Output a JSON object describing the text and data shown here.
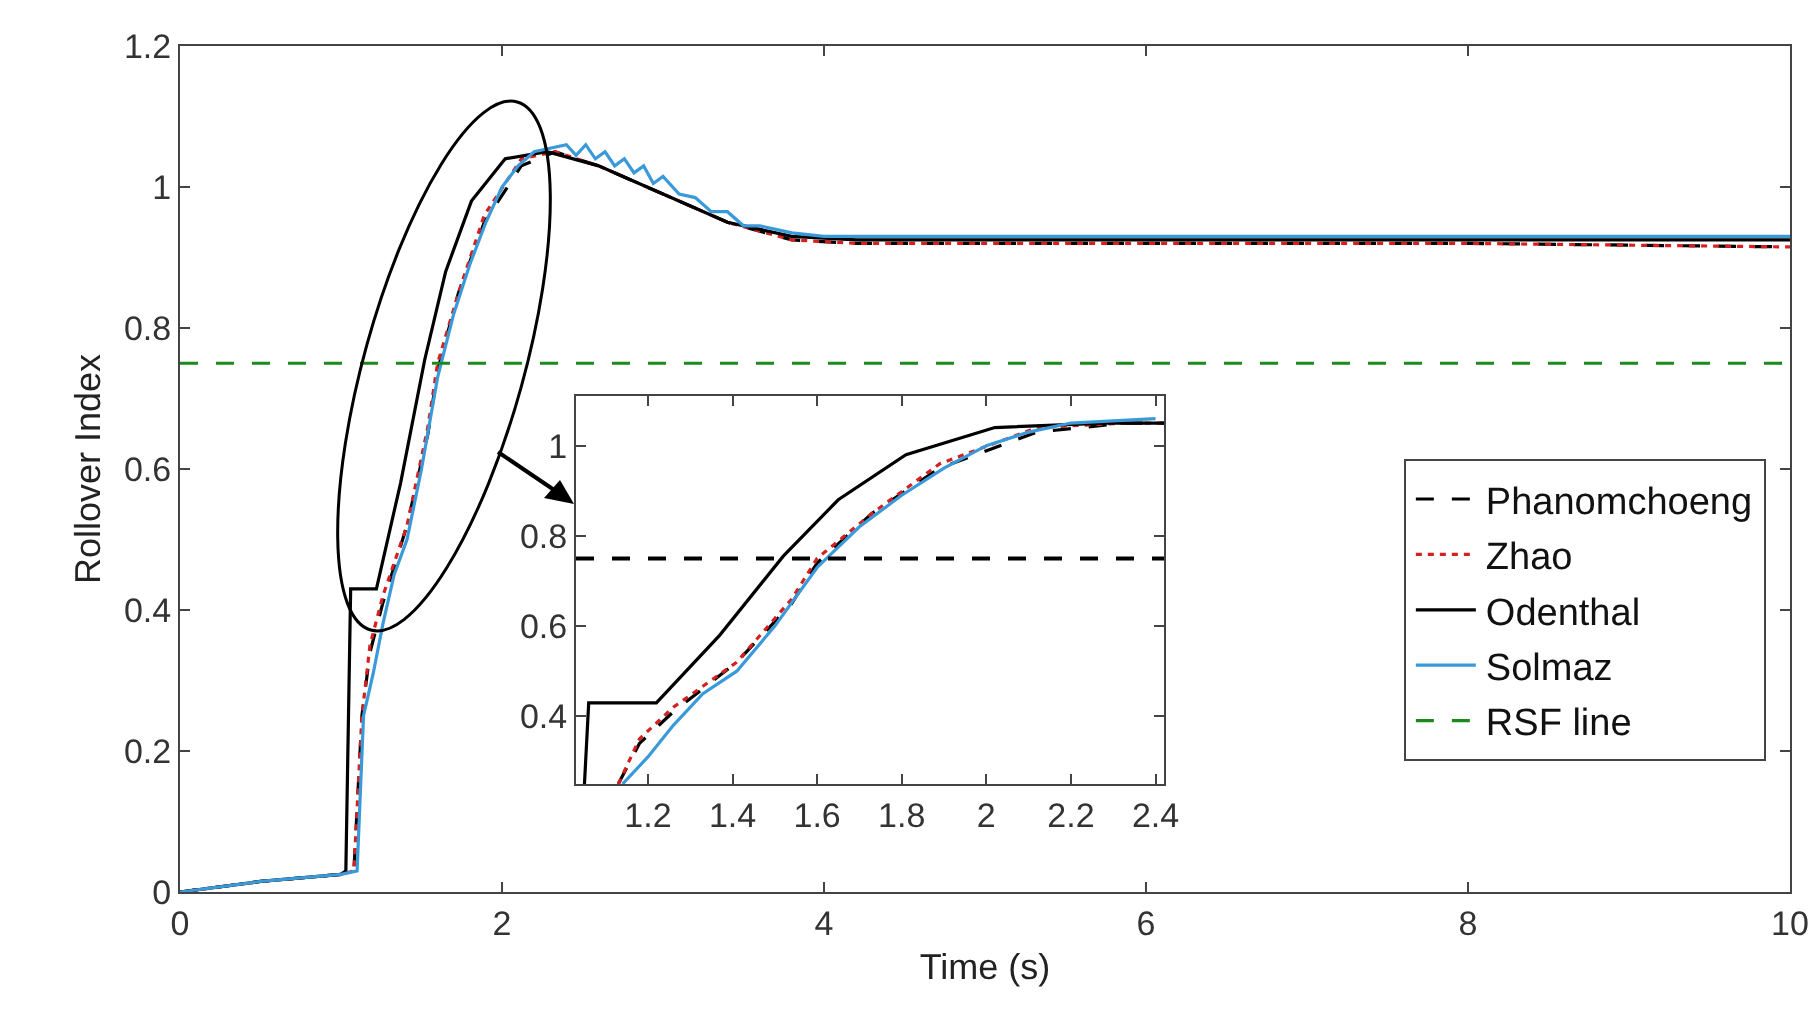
{
  "chart_data": [
    {
      "type": "line",
      "xlabel": "Time (s)",
      "ylabel": "Rollover Index",
      "xlim": [
        0,
        10
      ],
      "xticks": [
        0,
        2,
        4,
        6,
        8,
        10
      ],
      "ylim": [
        0,
        1.2
      ],
      "yticks": [
        0,
        0.2,
        0.4,
        0.6,
        0.8,
        1,
        1.2
      ],
      "grid": false,
      "legend": "right",
      "series": [
        {
          "name": "Phanomchoeng",
          "color": "#000000",
          "line_style": "dashed",
          "x": [
            0,
            0.5,
            1.0,
            1.08,
            1.13,
            1.18,
            1.26,
            1.41,
            1.54,
            1.6,
            1.73,
            1.89,
            2.12,
            2.33,
            2.6,
            3.0,
            3.4,
            3.8,
            4.2,
            6,
            8,
            10
          ],
          "values": [
            0,
            0.015,
            0.025,
            0.03,
            0.25,
            0.34,
            0.41,
            0.52,
            0.65,
            0.74,
            0.85,
            0.95,
            1.03,
            1.05,
            1.03,
            0.99,
            0.95,
            0.925,
            0.92,
            0.92,
            0.92,
            0.915
          ]
        },
        {
          "name": "Zhao",
          "color": "#d62020",
          "line_style": "dotted",
          "x": [
            0,
            0.5,
            1.0,
            1.08,
            1.13,
            1.18,
            1.26,
            1.41,
            1.54,
            1.6,
            1.73,
            1.89,
            2.12,
            2.33,
            2.6,
            3.0,
            3.4,
            3.8,
            4.2,
            6,
            8,
            10
          ],
          "values": [
            0,
            0.015,
            0.025,
            0.03,
            0.25,
            0.35,
            0.42,
            0.52,
            0.66,
            0.75,
            0.85,
            0.96,
            1.04,
            1.05,
            1.03,
            0.99,
            0.95,
            0.925,
            0.92,
            0.92,
            0.92,
            0.915
          ]
        },
        {
          "name": "Odenthal",
          "color": "#000000",
          "line_style": "solid",
          "x": [
            0,
            0.5,
            1.0,
            1.03,
            1.06,
            1.1,
            1.22,
            1.37,
            1.52,
            1.65,
            1.81,
            2.02,
            2.28,
            2.6,
            3.0,
            3.4,
            3.8,
            4.2,
            6,
            8,
            10
          ],
          "values": [
            0,
            0.015,
            0.025,
            0.03,
            0.43,
            0.43,
            0.43,
            0.58,
            0.755,
            0.88,
            0.98,
            1.04,
            1.05,
            1.03,
            0.99,
            0.95,
            0.93,
            0.925,
            0.925,
            0.925,
            0.925
          ]
        },
        {
          "name": "Solmaz",
          "color": "#3a9ad9",
          "line_style": "solid",
          "x": [
            0,
            0.5,
            1.0,
            1.1,
            1.14,
            1.2,
            1.26,
            1.33,
            1.41,
            1.5,
            1.6,
            1.7,
            1.8,
            1.9,
            2.0,
            2.1,
            2.2,
            2.4,
            2.46,
            2.52,
            2.58,
            2.64,
            2.7,
            2.76,
            2.82,
            2.88,
            2.94,
            3.0,
            3.1,
            3.2,
            3.3,
            3.4,
            3.5,
            3.6,
            3.8,
            4.0,
            6,
            8,
            10
          ],
          "values": [
            0,
            0.015,
            0.025,
            0.03,
            0.25,
            0.31,
            0.38,
            0.45,
            0.5,
            0.6,
            0.73,
            0.82,
            0.89,
            0.95,
            1.0,
            1.03,
            1.05,
            1.06,
            1.045,
            1.06,
            1.04,
            1.05,
            1.03,
            1.04,
            1.02,
            1.03,
            1.005,
            1.015,
            0.99,
            0.985,
            0.965,
            0.965,
            0.945,
            0.945,
            0.935,
            0.93,
            0.93,
            0.93,
            0.93
          ]
        },
        {
          "name": "RSF line",
          "color": "#1a8a1a",
          "line_style": "dashed",
          "x": [
            0,
            10
          ],
          "values": [
            0.75,
            0.75
          ]
        }
      ]
    },
    {
      "type": "line",
      "xlim": [
        1.03,
        2.42
      ],
      "xticks": [
        1.2,
        1.4,
        1.6,
        1.8,
        2,
        2.2,
        2.4
      ],
      "ylim": [
        0.25,
        1.11
      ],
      "yticks": [
        0.4,
        0.6,
        0.8,
        1
      ],
      "grid": false,
      "legend": false,
      "ref_lines": [
        {
          "axis": "y",
          "value": 0.75,
          "color": "#000000",
          "line_style": "dashed"
        }
      ],
      "series": [
        {
          "color": "#000000",
          "line_style": "dashed",
          "x": [
            1.13,
            1.18,
            1.26,
            1.41,
            1.54,
            1.6,
            1.73,
            1.89,
            2.12,
            2.33,
            2.42
          ],
          "values": [
            0.25,
            0.34,
            0.41,
            0.52,
            0.65,
            0.74,
            0.85,
            0.95,
            1.03,
            1.05,
            1.05
          ]
        },
        {
          "color": "#d62020",
          "line_style": "dotted",
          "x": [
            1.13,
            1.18,
            1.26,
            1.41,
            1.54,
            1.6,
            1.73,
            1.89,
            2.12,
            2.33,
            2.42
          ],
          "values": [
            0.25,
            0.35,
            0.42,
            0.52,
            0.66,
            0.75,
            0.85,
            0.96,
            1.04,
            1.05,
            1.05
          ]
        },
        {
          "color": "#000000",
          "line_style": "solid",
          "x": [
            1.05,
            1.06,
            1.1,
            1.22,
            1.37,
            1.52,
            1.65,
            1.81,
            2.02,
            2.28,
            2.42
          ],
          "values": [
            0.25,
            0.43,
            0.43,
            0.43,
            0.58,
            0.755,
            0.88,
            0.98,
            1.04,
            1.05,
            1.05
          ]
        },
        {
          "color": "#3a9ad9",
          "line_style": "solid",
          "x": [
            1.14,
            1.2,
            1.26,
            1.33,
            1.41,
            1.5,
            1.6,
            1.7,
            1.8,
            1.9,
            2.0,
            2.1,
            2.2,
            2.4
          ],
          "values": [
            0.25,
            0.31,
            0.38,
            0.45,
            0.5,
            0.6,
            0.73,
            0.82,
            0.89,
            0.95,
            1.0,
            1.03,
            1.05,
            1.06
          ]
        }
      ]
    }
  ]
}
